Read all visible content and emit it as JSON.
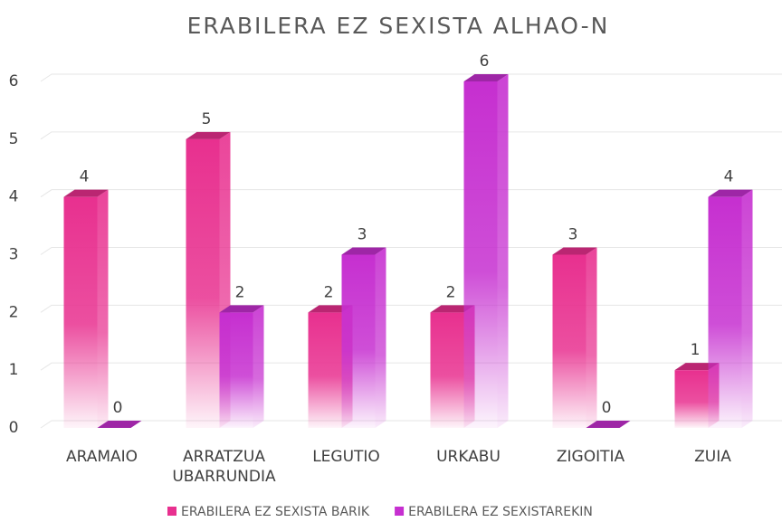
{
  "chart_data": {
    "type": "bar",
    "title": "ERABILERA EZ SEXISTA ALHAO-N",
    "categories": [
      "ARAMAIO",
      "ARRATZUA UBARRUNDIA",
      "LEGUTIO",
      "URKABU",
      "ZIGOITIA",
      "ZUIA"
    ],
    "series": [
      {
        "name": "ERABILERA EZ SEXISTA BARIK",
        "color": "#e8308f",
        "values": [
          4,
          5,
          2,
          2,
          3,
          1
        ]
      },
      {
        "name": "ERABILERA EZ SEXISTAREKIN",
        "color": "#c62fd0",
        "values": [
          0,
          2,
          3,
          6,
          0,
          4
        ]
      }
    ],
    "ylim": [
      0,
      6
    ],
    "yticks": [
      0,
      1,
      2,
      3,
      4,
      5,
      6
    ],
    "grid": true,
    "legend": "bottom"
  }
}
